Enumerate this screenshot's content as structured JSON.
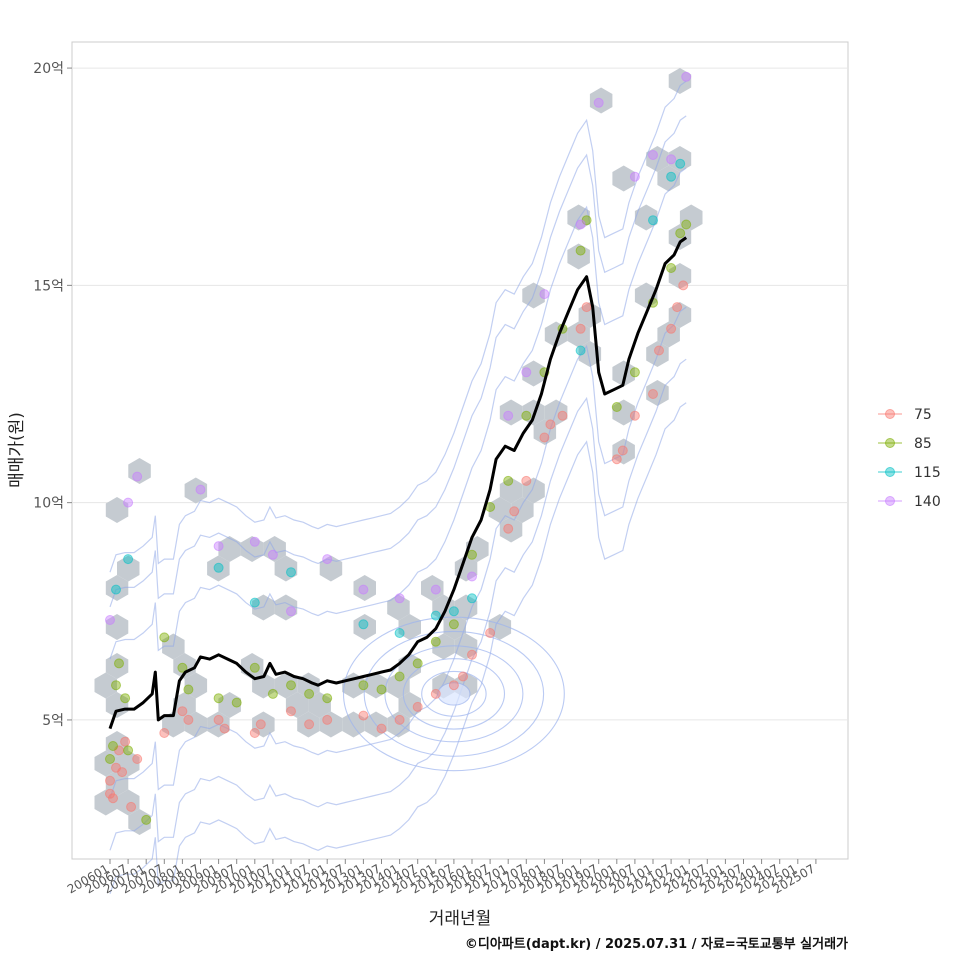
{
  "chart_data": {
    "type": "scatter",
    "title": "",
    "xlabel": "거래년월",
    "ylabel": "매매가(원)",
    "caption": "©디아파트(dapt.kr) / 2025.07.31 / 자료=국토교통부 실거래가",
    "ylim": [
      1.8,
      20.6
    ],
    "y_ticks": [
      {
        "value": 5,
        "label": "5억"
      },
      {
        "value": 10,
        "label": "10억"
      },
      {
        "value": 15,
        "label": "15억"
      },
      {
        "value": 20,
        "label": "20억"
      }
    ],
    "x_ticks": [
      "200601",
      "200607",
      "200701",
      "200707",
      "200801",
      "200807",
      "200901",
      "200907",
      "201001",
      "201007",
      "201101",
      "201107",
      "201201",
      "201207",
      "201301",
      "201307",
      "201401",
      "201407",
      "201501",
      "201507",
      "201601",
      "201607",
      "201701",
      "201707",
      "201801",
      "201807",
      "201901",
      "201907",
      "202001",
      "202007",
      "202101",
      "202107",
      "202201",
      "202207",
      "202301",
      "202307",
      "202401",
      "202407",
      "202501",
      "202507"
    ],
    "grid": true,
    "legend": {
      "position": "right",
      "entries": [
        {
          "name": "75",
          "color": "#F8766D"
        },
        {
          "name": "85",
          "color": "#7CAE00"
        },
        {
          "name": "115",
          "color": "#00BFC4"
        },
        {
          "name": "140",
          "color": "#C77CFF"
        }
      ]
    },
    "trend_line": {
      "color": "#000000",
      "points": [
        [
          "200601",
          4.8
        ],
        [
          "200603",
          5.2
        ],
        [
          "200606",
          5.25
        ],
        [
          "200609",
          5.25
        ],
        [
          "200612",
          5.4
        ],
        [
          "200703",
          5.6
        ],
        [
          "200704",
          6.1
        ],
        [
          "200705",
          5.0
        ],
        [
          "200707",
          5.1
        ],
        [
          "200710",
          5.1
        ],
        [
          "200712",
          5.9
        ],
        [
          "200802",
          6.1
        ],
        [
          "200805",
          6.2
        ],
        [
          "200807",
          6.45
        ],
        [
          "200810",
          6.4
        ],
        [
          "200901",
          6.5
        ],
        [
          "200904",
          6.4
        ],
        [
          "200907",
          6.3
        ],
        [
          "200910",
          6.1
        ],
        [
          "201001",
          5.95
        ],
        [
          "201004",
          6.0
        ],
        [
          "201006",
          6.3
        ],
        [
          "201008",
          6.05
        ],
        [
          "201011",
          6.1
        ],
        [
          "201102",
          6.0
        ],
        [
          "201105",
          5.95
        ],
        [
          "201108",
          5.85
        ],
        [
          "201110",
          5.8
        ],
        [
          "201201",
          5.9
        ],
        [
          "201204",
          5.85
        ],
        [
          "201207",
          5.9
        ],
        [
          "201210",
          5.95
        ],
        [
          "201301",
          6.0
        ],
        [
          "201304",
          6.05
        ],
        [
          "201307",
          6.1
        ],
        [
          "201310",
          6.15
        ],
        [
          "201401",
          6.3
        ],
        [
          "201404",
          6.5
        ],
        [
          "201407",
          6.8
        ],
        [
          "201410",
          6.9
        ],
        [
          "201501",
          7.1
        ],
        [
          "201504",
          7.5
        ],
        [
          "201507",
          8.0
        ],
        [
          "201510",
          8.6
        ],
        [
          "201601",
          9.2
        ],
        [
          "201604",
          9.6
        ],
        [
          "201607",
          10.3
        ],
        [
          "201609",
          11.0
        ],
        [
          "201612",
          11.3
        ],
        [
          "201703",
          11.2
        ],
        [
          "201706",
          11.6
        ],
        [
          "201709",
          11.9
        ],
        [
          "201712",
          12.5
        ],
        [
          "201803",
          13.3
        ],
        [
          "201806",
          13.9
        ],
        [
          "201809",
          14.4
        ],
        [
          "201812",
          14.9
        ],
        [
          "201903",
          15.2
        ],
        [
          "201905",
          14.5
        ],
        [
          "201907",
          13.0
        ],
        [
          "201909",
          12.5
        ],
        [
          "201912",
          12.6
        ],
        [
          "202003",
          12.7
        ],
        [
          "202005",
          13.3
        ],
        [
          "202008",
          13.9
        ],
        [
          "202011",
          14.4
        ],
        [
          "202102",
          14.9
        ],
        [
          "202105",
          15.5
        ],
        [
          "202108",
          15.7
        ],
        [
          "202110",
          16.0
        ],
        [
          "202112",
          16.1
        ]
      ]
    },
    "series": [
      {
        "name": "75",
        "points": [
          [
            "200601",
            3.3
          ],
          [
            "200601",
            3.6
          ],
          [
            "200602",
            3.2
          ],
          [
            "200603",
            3.9
          ],
          [
            "200604",
            4.3
          ],
          [
            "200605",
            3.8
          ],
          [
            "200606",
            4.5
          ],
          [
            "200608",
            3.0
          ],
          [
            "200610",
            4.1
          ],
          [
            "200707",
            4.7
          ],
          [
            "200801",
            5.2
          ],
          [
            "200803",
            5.0
          ],
          [
            "200901",
            5.0
          ],
          [
            "200903",
            4.8
          ],
          [
            "201001",
            4.7
          ],
          [
            "201003",
            4.9
          ],
          [
            "201101",
            5.2
          ],
          [
            "201107",
            4.9
          ],
          [
            "201201",
            5.0
          ],
          [
            "201301",
            5.1
          ],
          [
            "201307",
            4.8
          ],
          [
            "201401",
            5.0
          ],
          [
            "201407",
            5.3
          ],
          [
            "201501",
            5.6
          ],
          [
            "201507",
            5.8
          ],
          [
            "201510",
            6.0
          ],
          [
            "201601",
            6.5
          ],
          [
            "201607",
            7.0
          ],
          [
            "201701",
            9.4
          ],
          [
            "201703",
            9.8
          ],
          [
            "201707",
            10.5
          ],
          [
            "201801",
            11.5
          ],
          [
            "201803",
            11.8
          ],
          [
            "201807",
            12.0
          ],
          [
            "201901",
            14.0
          ],
          [
            "201903",
            14.5
          ],
          [
            "202001",
            11.0
          ],
          [
            "202003",
            11.2
          ],
          [
            "202007",
            12.0
          ],
          [
            "202101",
            12.5
          ],
          [
            "202103",
            13.5
          ],
          [
            "202107",
            14.0
          ],
          [
            "202109",
            14.5
          ],
          [
            "202111",
            15.0
          ]
        ]
      },
      {
        "name": "85",
        "points": [
          [
            "200601",
            4.1
          ],
          [
            "200602",
            4.4
          ],
          [
            "200603",
            5.8
          ],
          [
            "200604",
            6.3
          ],
          [
            "200606",
            5.5
          ],
          [
            "200607",
            4.3
          ],
          [
            "200701",
            2.7
          ],
          [
            "200707",
            6.9
          ],
          [
            "200801",
            6.2
          ],
          [
            "200803",
            5.7
          ],
          [
            "200901",
            5.5
          ],
          [
            "200907",
            5.4
          ],
          [
            "201001",
            6.2
          ],
          [
            "201007",
            5.6
          ],
          [
            "201101",
            5.8
          ],
          [
            "201107",
            5.6
          ],
          [
            "201201",
            5.5
          ],
          [
            "201301",
            5.8
          ],
          [
            "201307",
            5.7
          ],
          [
            "201401",
            6.0
          ],
          [
            "201407",
            6.3
          ],
          [
            "201501",
            6.8
          ],
          [
            "201507",
            7.2
          ],
          [
            "201601",
            8.8
          ],
          [
            "201607",
            9.9
          ],
          [
            "201701",
            10.5
          ],
          [
            "201707",
            12.0
          ],
          [
            "201801",
            13.0
          ],
          [
            "201807",
            14.0
          ],
          [
            "201901",
            15.8
          ],
          [
            "201903",
            16.5
          ],
          [
            "202001",
            12.2
          ],
          [
            "202007",
            13.0
          ],
          [
            "202101",
            14.6
          ],
          [
            "202107",
            15.4
          ],
          [
            "202110",
            16.2
          ],
          [
            "202112",
            16.4
          ]
        ]
      },
      {
        "name": "115",
        "points": [
          [
            "200603",
            8.0
          ],
          [
            "200607",
            8.7
          ],
          [
            "200901",
            8.5
          ],
          [
            "201001",
            7.7
          ],
          [
            "201101",
            8.4
          ],
          [
            "201301",
            7.2
          ],
          [
            "201401",
            7.0
          ],
          [
            "201501",
            7.4
          ],
          [
            "201507",
            7.5
          ],
          [
            "201601",
            7.8
          ],
          [
            "201901",
            13.5
          ],
          [
            "202101",
            16.5
          ],
          [
            "202107",
            17.5
          ],
          [
            "202110",
            17.8
          ]
        ]
      },
      {
        "name": "140",
        "points": [
          [
            "200601",
            7.3
          ],
          [
            "200607",
            10.0
          ],
          [
            "200610",
            10.6
          ],
          [
            "200807",
            10.3
          ],
          [
            "200901",
            9.0
          ],
          [
            "201001",
            9.1
          ],
          [
            "201007",
            8.8
          ],
          [
            "201101",
            7.5
          ],
          [
            "201201",
            8.7
          ],
          [
            "201301",
            8.0
          ],
          [
            "201401",
            7.8
          ],
          [
            "201501",
            8.0
          ],
          [
            "201601",
            8.3
          ],
          [
            "201701",
            12.0
          ],
          [
            "201707",
            13.0
          ],
          [
            "201801",
            14.8
          ],
          [
            "201901",
            16.4
          ],
          [
            "201907",
            19.2
          ],
          [
            "202007",
            17.5
          ],
          [
            "202101",
            18.0
          ],
          [
            "202107",
            17.9
          ],
          [
            "202112",
            19.8
          ]
        ]
      }
    ]
  }
}
